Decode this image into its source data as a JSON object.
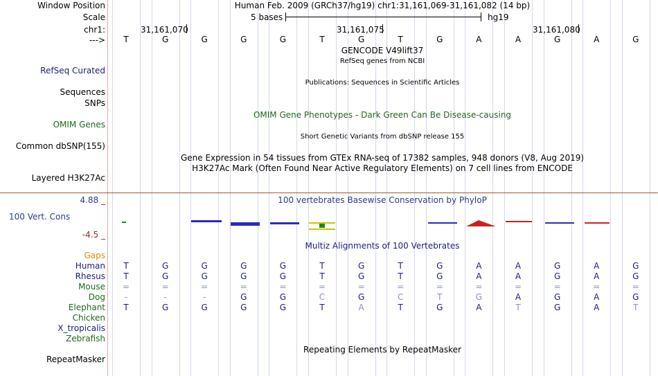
{
  "labels": {
    "window_position": "Window Position",
    "scale": "Scale",
    "chrom": "chr1:",
    "strand": "--->",
    "refseq": "RefSeq Curated",
    "sequences": "Sequences",
    "snps": "SNPs",
    "omim_genes": "OMIM Genes",
    "common_dbsnp": "Common dbSNP(155)",
    "layered_h3k27ac": "Layered H3K27Ac",
    "phylop_max": "4.88 _",
    "vert_cons": "100 Vert. Cons",
    "phylop_min": "-4.5 _",
    "gaps": "Gaps",
    "repeatmasker": "RepeatMasker"
  },
  "header": {
    "window_position": "Human Feb. 2009 (GRCh37/hg19)   chr1:31,161,069-31,161,082 (14 bp)",
    "scale_text": "5 bases",
    "scale_assembly": "hg19",
    "positions": [
      "31,161,070",
      "31,161,075",
      "31,161,080"
    ]
  },
  "ruler_bases": [
    "T",
    "G",
    "G",
    "G",
    "G",
    "T",
    "G",
    "T",
    "G",
    "A",
    "A",
    "G",
    "A",
    "G"
  ],
  "track_titles": {
    "gencode": "GENCODE V49lift37",
    "refseq": "RefSeq genes from NCBI",
    "publications": "Publications: Sequences in Scientific Articles",
    "omim": "OMIM Gene Phenotypes - Dark Green Can Be Disease-causing",
    "dbsnp": "Short Genetic Variants from dbSNP release 155",
    "gtex": "Gene Expression in 54 tissues from GTEx RNA-seq of 17382 samples, 948 donors (V8, Aug 2019)",
    "h3k27ac": "H3K27Ac Mark (Often Found Near Active Regulatory Elements) on 7 cell lines from ENCODE",
    "phylop": "100 vertebrates Basewise Conservation by PhyloP",
    "multiz": "Multiz Alignments of 100 Vertebrates",
    "repeatmasker": "Repeating Elements by RepeatMasker"
  },
  "species": [
    {
      "name": "Human",
      "color": "#1c1c7a",
      "bases": [
        "T",
        "G",
        "G",
        "G",
        "G",
        "T",
        "G",
        "T",
        "G",
        "A",
        "A",
        "G",
        "A",
        "G"
      ]
    },
    {
      "name": "Rhesus",
      "color": "#1c1c7a",
      "bases": [
        "T",
        "G",
        "G",
        "G",
        "G",
        "T",
        "G",
        "T",
        "G",
        "A",
        "A",
        "G",
        "A",
        "G"
      ]
    },
    {
      "name": "Mouse",
      "color": "#1a6b1a",
      "bases": [
        "=",
        "=",
        "=",
        "=",
        "=",
        "=",
        "=",
        "=",
        "=",
        "=",
        "=",
        "=",
        "=",
        "="
      ]
    },
    {
      "name": "Dog",
      "color": "#1a6b1a",
      "bases": [
        "-",
        "-",
        "-",
        "G",
        "G",
        "C",
        "G",
        "C",
        "T",
        "G",
        "A",
        "G",
        "A",
        "G"
      ]
    },
    {
      "name": "Elephant",
      "color": "#1a6b1a",
      "bases": [
        "T",
        "G",
        "G",
        "G",
        "G",
        "T",
        "A",
        "T",
        "G",
        "A",
        "T",
        "G",
        "A",
        "T"
      ]
    },
    {
      "name": "Chicken",
      "color": "#1a6b1a",
      "bases": []
    },
    {
      "name": "X_tropicalis",
      "color": "#1c1c7a",
      "bases": []
    },
    {
      "name": "Zebrafish",
      "color": "#1a6b1a",
      "bases": []
    }
  ],
  "faded_cells": {
    "Mouse": [
      0,
      1,
      2,
      3,
      4,
      5,
      6,
      7,
      8,
      9,
      10,
      11,
      12,
      13
    ],
    "Dog": [
      0,
      1,
      2,
      5,
      7,
      8,
      9
    ],
    "Elephant": [
      6,
      10,
      13
    ]
  },
  "colors": {
    "label_navy": "#1c1c7a",
    "label_green": "#1a6b1a",
    "gaps_orange": "#e08a00",
    "grid": "#d5d8ee",
    "separator": "#9c5b2e",
    "faded_base": "#8c8cc8"
  }
}
